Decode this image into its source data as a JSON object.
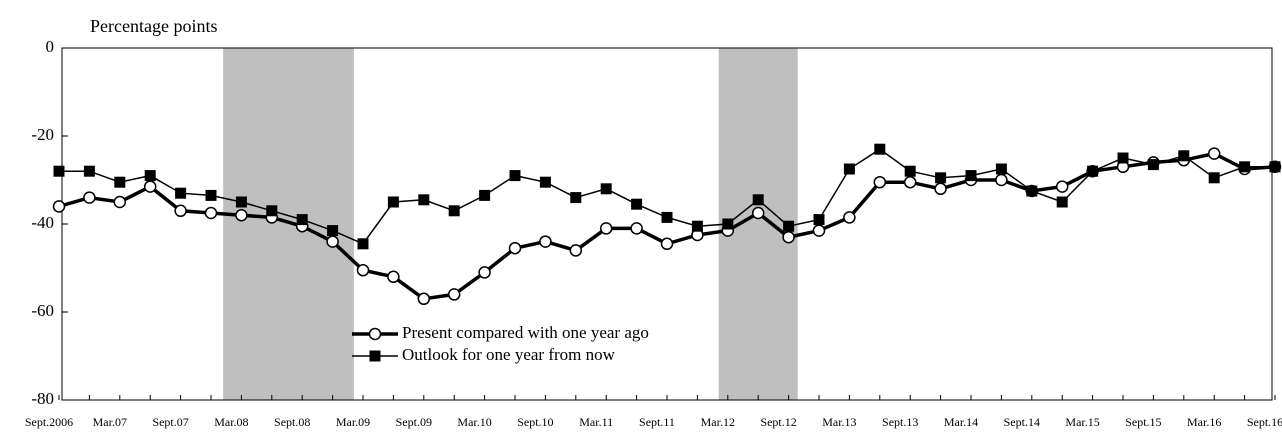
{
  "chart_data": {
    "type": "line",
    "y_label": "Percentage points",
    "categories": [
      "Sept.2006",
      null,
      "Mar.07",
      null,
      "Sept.07",
      null,
      "Mar.08",
      null,
      "Sept.08",
      null,
      "Mar.09",
      null,
      "Sept.09",
      null,
      "Mar.10",
      null,
      "Sept.10",
      null,
      "Mar.11",
      null,
      "Sept.11",
      null,
      "Mar.12",
      null,
      "Sept.12",
      null,
      "Mar.13",
      null,
      "Sept.13",
      null,
      "Mar.14",
      null,
      "Sept.14",
      null,
      "Mar.15",
      null,
      "Sept.15",
      null,
      "Mar.16",
      null,
      "Sept.16"
    ],
    "series": [
      {
        "name": "Present compared with one year ago",
        "color": "#000000",
        "marker": "open-circle",
        "values": [
          -36,
          -34,
          -35,
          -31.5,
          -37,
          -37.5,
          -38,
          -38.5,
          -40.5,
          -44,
          -50.5,
          -52,
          -57,
          -56,
          -51,
          -45.5,
          -44,
          -46,
          -41,
          -41,
          -44.5,
          -42.5,
          -41.5,
          -37.5,
          -43,
          -41.5,
          -38.5,
          -30.5,
          -30.5,
          -32,
          -30,
          -30,
          -32.5,
          -31.5,
          -28,
          -27,
          -26,
          -25.5,
          -24,
          -27.5,
          -27
        ]
      },
      {
        "name": "Outlook for one year from now",
        "color": "#000000",
        "marker": "filled-square",
        "values": [
          -28,
          -28,
          -30.5,
          -29,
          -33,
          -33.5,
          -35,
          -37,
          -39,
          -41.5,
          -44.5,
          -35,
          -34.5,
          -37,
          -33.5,
          -29,
          -30.5,
          -34,
          -32,
          -35.5,
          -38.5,
          -40.5,
          -40,
          -34.5,
          -40.5,
          -39,
          -27.5,
          -23,
          -28,
          -29.5,
          -29,
          -27.5,
          -32.5,
          -35,
          -28,
          -25,
          -26.5,
          -24.5,
          -29.5,
          -27,
          -27
        ]
      }
    ],
    "shaded_periods": [
      [
        5.4,
        9.7
      ],
      [
        21.7,
        24.3
      ]
    ],
    "ylim": [
      -80,
      0
    ],
    "yticks": [
      0,
      -20,
      -40,
      -60,
      -80
    ],
    "grid": false
  }
}
